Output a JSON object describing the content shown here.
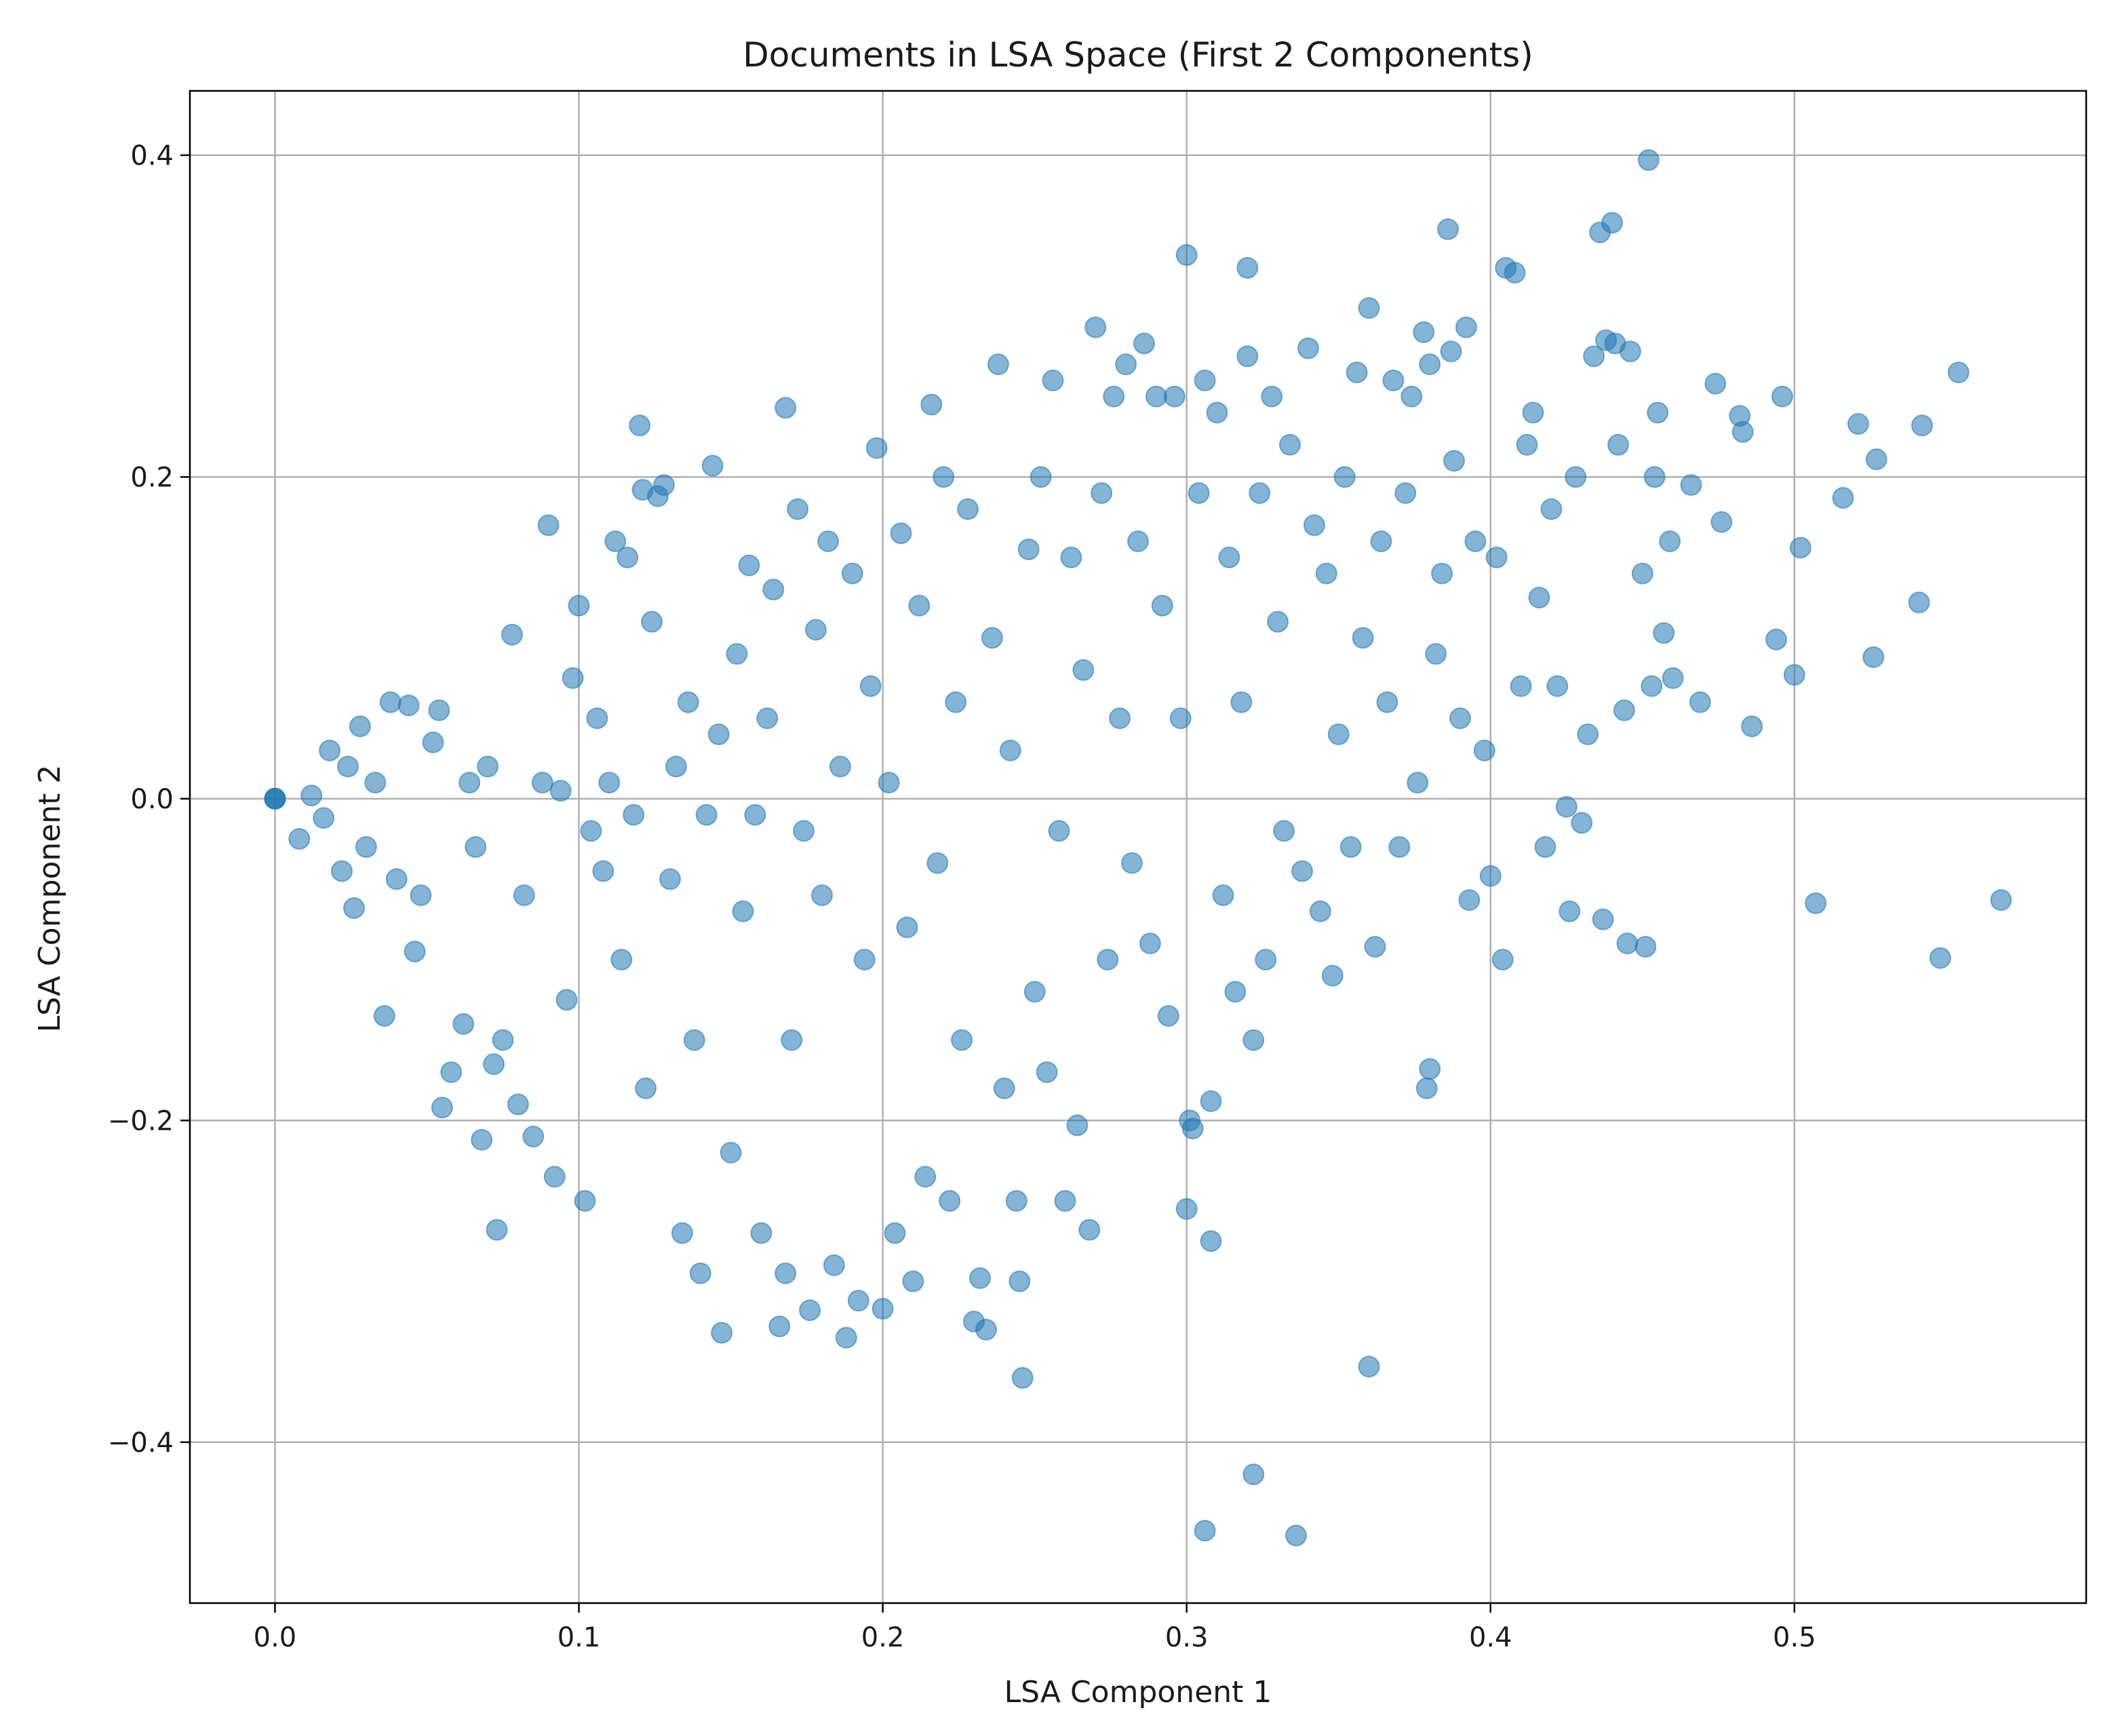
{
  "chart_data": {
    "type": "scatter",
    "title": "Documents in LSA Space (First 2 Components)",
    "xlabel": "LSA Component 1",
    "ylabel": "LSA Component 2",
    "xlim": [
      -0.028,
      0.596
    ],
    "ylim": [
      -0.5,
      0.44
    ],
    "xticks": [
      0.0,
      0.1,
      0.2,
      0.3,
      0.4,
      0.5
    ],
    "xtick_labels": [
      "0.0",
      "0.1",
      "0.2",
      "0.3",
      "0.4",
      "0.5"
    ],
    "yticks": [
      0.4,
      0.2,
      0.0,
      -0.2,
      -0.4
    ],
    "ytick_labels": [
      "0.4",
      "0.2",
      "0.0",
      "−0.2",
      "−0.4"
    ],
    "grid": true,
    "marker_color": "#1f77b4",
    "marker_alpha": 0.55,
    "series": [
      {
        "points": [
          [
            0.0,
            0.0
          ],
          [
            0.0,
            0.0
          ],
          [
            0.0,
            0.0
          ],
          [
            0.008,
            -0.025
          ],
          [
            0.012,
            0.002
          ],
          [
            0.016,
            -0.012
          ],
          [
            0.018,
            0.03
          ],
          [
            0.022,
            -0.045
          ],
          [
            0.024,
            0.02
          ],
          [
            0.026,
            -0.068
          ],
          [
            0.028,
            0.045
          ],
          [
            0.03,
            -0.03
          ],
          [
            0.033,
            0.01
          ],
          [
            0.036,
            -0.135
          ],
          [
            0.038,
            0.06
          ],
          [
            0.04,
            -0.05
          ],
          [
            0.044,
            0.058
          ],
          [
            0.046,
            -0.095
          ],
          [
            0.048,
            -0.06
          ],
          [
            0.052,
            0.035
          ],
          [
            0.054,
            0.055
          ],
          [
            0.055,
            -0.192
          ],
          [
            0.058,
            -0.17
          ],
          [
            0.062,
            -0.14
          ],
          [
            0.064,
            0.01
          ],
          [
            0.066,
            -0.03
          ],
          [
            0.068,
            -0.212
          ],
          [
            0.07,
            0.02
          ],
          [
            0.072,
            -0.165
          ],
          [
            0.073,
            -0.268
          ],
          [
            0.075,
            -0.15
          ],
          [
            0.078,
            0.102
          ],
          [
            0.08,
            -0.19
          ],
          [
            0.082,
            -0.06
          ],
          [
            0.085,
            -0.21
          ],
          [
            0.088,
            0.01
          ],
          [
            0.09,
            0.17
          ],
          [
            0.092,
            -0.235
          ],
          [
            0.094,
            0.005
          ],
          [
            0.096,
            -0.125
          ],
          [
            0.098,
            0.075
          ],
          [
            0.1,
            0.12
          ],
          [
            0.102,
            -0.25
          ],
          [
            0.104,
            -0.02
          ],
          [
            0.106,
            0.05
          ],
          [
            0.108,
            -0.045
          ],
          [
            0.11,
            0.01
          ],
          [
            0.112,
            0.16
          ],
          [
            0.114,
            -0.1
          ],
          [
            0.116,
            0.15
          ],
          [
            0.118,
            -0.01
          ],
          [
            0.12,
            0.232
          ],
          [
            0.121,
            0.192
          ],
          [
            0.122,
            -0.18
          ],
          [
            0.124,
            0.11
          ],
          [
            0.126,
            0.188
          ],
          [
            0.128,
            0.195
          ],
          [
            0.13,
            -0.05
          ],
          [
            0.132,
            0.02
          ],
          [
            0.134,
            -0.27
          ],
          [
            0.136,
            0.06
          ],
          [
            0.138,
            -0.15
          ],
          [
            0.14,
            -0.295
          ],
          [
            0.142,
            -0.01
          ],
          [
            0.144,
            0.207
          ],
          [
            0.146,
            0.04
          ],
          [
            0.147,
            -0.332
          ],
          [
            0.15,
            -0.22
          ],
          [
            0.152,
            0.09
          ],
          [
            0.154,
            -0.07
          ],
          [
            0.156,
            0.145
          ],
          [
            0.158,
            -0.01
          ],
          [
            0.16,
            -0.27
          ],
          [
            0.162,
            0.05
          ],
          [
            0.164,
            0.13
          ],
          [
            0.166,
            -0.328
          ],
          [
            0.168,
            0.243
          ],
          [
            0.168,
            -0.295
          ],
          [
            0.17,
            -0.15
          ],
          [
            0.172,
            0.18
          ],
          [
            0.174,
            -0.02
          ],
          [
            0.176,
            -0.318
          ],
          [
            0.178,
            0.105
          ],
          [
            0.18,
            -0.06
          ],
          [
            0.182,
            0.16
          ],
          [
            0.184,
            -0.29
          ],
          [
            0.186,
            0.02
          ],
          [
            0.188,
            -0.335
          ],
          [
            0.19,
            0.14
          ],
          [
            0.192,
            -0.312
          ],
          [
            0.194,
            -0.1
          ],
          [
            0.196,
            0.07
          ],
          [
            0.198,
            0.218
          ],
          [
            0.2,
            -0.317
          ],
          [
            0.202,
            0.01
          ],
          [
            0.204,
            -0.27
          ],
          [
            0.206,
            0.165
          ],
          [
            0.208,
            -0.08
          ],
          [
            0.21,
            -0.3
          ],
          [
            0.212,
            0.12
          ],
          [
            0.214,
            -0.235
          ],
          [
            0.216,
            0.245
          ],
          [
            0.218,
            -0.04
          ],
          [
            0.22,
            0.2
          ],
          [
            0.222,
            -0.25
          ],
          [
            0.224,
            0.06
          ],
          [
            0.226,
            -0.15
          ],
          [
            0.228,
            0.18
          ],
          [
            0.23,
            -0.325
          ],
          [
            0.232,
            -0.298
          ],
          [
            0.234,
            -0.33
          ],
          [
            0.236,
            0.1
          ],
          [
            0.238,
            0.27
          ],
          [
            0.24,
            -0.18
          ],
          [
            0.242,
            0.03
          ],
          [
            0.244,
            -0.25
          ],
          [
            0.245,
            -0.3
          ],
          [
            0.246,
            -0.36
          ],
          [
            0.248,
            0.155
          ],
          [
            0.25,
            -0.12
          ],
          [
            0.252,
            0.2
          ],
          [
            0.254,
            -0.17
          ],
          [
            0.256,
            0.26
          ],
          [
            0.258,
            -0.02
          ],
          [
            0.26,
            -0.25
          ],
          [
            0.262,
            0.15
          ],
          [
            0.264,
            -0.203
          ],
          [
            0.266,
            0.08
          ],
          [
            0.268,
            -0.268
          ],
          [
            0.27,
            0.293
          ],
          [
            0.272,
            0.19
          ],
          [
            0.274,
            -0.1
          ],
          [
            0.276,
            0.25
          ],
          [
            0.278,
            0.05
          ],
          [
            0.28,
            0.27
          ],
          [
            0.282,
            -0.04
          ],
          [
            0.284,
            0.16
          ],
          [
            0.286,
            0.283
          ],
          [
            0.288,
            -0.09
          ],
          [
            0.29,
            0.25
          ],
          [
            0.292,
            0.12
          ],
          [
            0.294,
            -0.135
          ],
          [
            0.296,
            0.25
          ],
          [
            0.298,
            0.05
          ],
          [
            0.3,
            0.338
          ],
          [
            0.3,
            -0.255
          ],
          [
            0.301,
            -0.2
          ],
          [
            0.302,
            -0.205
          ],
          [
            0.304,
            0.19
          ],
          [
            0.306,
            0.26
          ],
          [
            0.306,
            -0.455
          ],
          [
            0.308,
            -0.275
          ],
          [
            0.308,
            -0.188
          ],
          [
            0.31,
            0.24
          ],
          [
            0.312,
            -0.06
          ],
          [
            0.314,
            0.15
          ],
          [
            0.316,
            -0.12
          ],
          [
            0.318,
            0.06
          ],
          [
            0.32,
            0.33
          ],
          [
            0.32,
            0.275
          ],
          [
            0.322,
            -0.42
          ],
          [
            0.322,
            -0.15
          ],
          [
            0.324,
            0.19
          ],
          [
            0.326,
            -0.1
          ],
          [
            0.328,
            0.25
          ],
          [
            0.33,
            0.11
          ],
          [
            0.332,
            -0.02
          ],
          [
            0.334,
            0.22
          ],
          [
            0.336,
            -0.458
          ],
          [
            0.338,
            -0.045
          ],
          [
            0.34,
            0.28
          ],
          [
            0.342,
            0.17
          ],
          [
            0.344,
            -0.07
          ],
          [
            0.346,
            0.14
          ],
          [
            0.348,
            -0.11
          ],
          [
            0.35,
            0.04
          ],
          [
            0.352,
            0.2
          ],
          [
            0.354,
            -0.03
          ],
          [
            0.356,
            0.265
          ],
          [
            0.358,
            0.1
          ],
          [
            0.36,
            0.305
          ],
          [
            0.36,
            -0.353
          ],
          [
            0.362,
            -0.092
          ],
          [
            0.364,
            0.16
          ],
          [
            0.366,
            0.06
          ],
          [
            0.368,
            0.26
          ],
          [
            0.37,
            -0.03
          ],
          [
            0.372,
            0.19
          ],
          [
            0.374,
            0.25
          ],
          [
            0.376,
            0.01
          ],
          [
            0.378,
            0.29
          ],
          [
            0.379,
            -0.18
          ],
          [
            0.38,
            -0.168
          ],
          [
            0.38,
            0.27
          ],
          [
            0.382,
            0.09
          ],
          [
            0.384,
            0.14
          ],
          [
            0.386,
            0.354
          ],
          [
            0.387,
            0.278
          ],
          [
            0.388,
            0.21
          ],
          [
            0.39,
            0.05
          ],
          [
            0.392,
            0.293
          ],
          [
            0.393,
            -0.063
          ],
          [
            0.395,
            0.16
          ],
          [
            0.398,
            0.03
          ],
          [
            0.4,
            -0.048
          ],
          [
            0.402,
            0.15
          ],
          [
            0.404,
            -0.1
          ],
          [
            0.405,
            0.33
          ],
          [
            0.408,
            0.327
          ],
          [
            0.41,
            0.07
          ],
          [
            0.412,
            0.22
          ],
          [
            0.414,
            0.24
          ],
          [
            0.416,
            0.125
          ],
          [
            0.418,
            -0.03
          ],
          [
            0.42,
            0.18
          ],
          [
            0.422,
            0.07
          ],
          [
            0.425,
            -0.005
          ],
          [
            0.426,
            -0.07
          ],
          [
            0.428,
            0.2
          ],
          [
            0.43,
            -0.015
          ],
          [
            0.432,
            0.04
          ],
          [
            0.434,
            0.275
          ],
          [
            0.436,
            0.352
          ],
          [
            0.437,
            -0.075
          ],
          [
            0.438,
            0.285
          ],
          [
            0.44,
            0.358
          ],
          [
            0.441,
            0.283
          ],
          [
            0.442,
            0.22
          ],
          [
            0.444,
            0.055
          ],
          [
            0.445,
            -0.09
          ],
          [
            0.446,
            0.278
          ],
          [
            0.45,
            0.14
          ],
          [
            0.451,
            -0.092
          ],
          [
            0.452,
            0.397
          ],
          [
            0.453,
            0.07
          ],
          [
            0.454,
            0.2
          ],
          [
            0.455,
            0.24
          ],
          [
            0.457,
            0.103
          ],
          [
            0.459,
            0.16
          ],
          [
            0.46,
            0.075
          ],
          [
            0.466,
            0.195
          ],
          [
            0.469,
            0.06
          ],
          [
            0.474,
            0.258
          ],
          [
            0.476,
            0.172
          ],
          [
            0.482,
            0.238
          ],
          [
            0.483,
            0.228
          ],
          [
            0.486,
            0.045
          ],
          [
            0.494,
            0.099
          ],
          [
            0.496,
            0.25
          ],
          [
            0.5,
            0.077
          ],
          [
            0.502,
            0.156
          ],
          [
            0.507,
            -0.065
          ],
          [
            0.516,
            0.187
          ],
          [
            0.521,
            0.233
          ],
          [
            0.526,
            0.088
          ],
          [
            0.527,
            0.211
          ],
          [
            0.541,
            0.122
          ],
          [
            0.542,
            0.232
          ],
          [
            0.548,
            -0.099
          ],
          [
            0.554,
            0.265
          ],
          [
            0.568,
            -0.063
          ]
        ]
      }
    ]
  }
}
